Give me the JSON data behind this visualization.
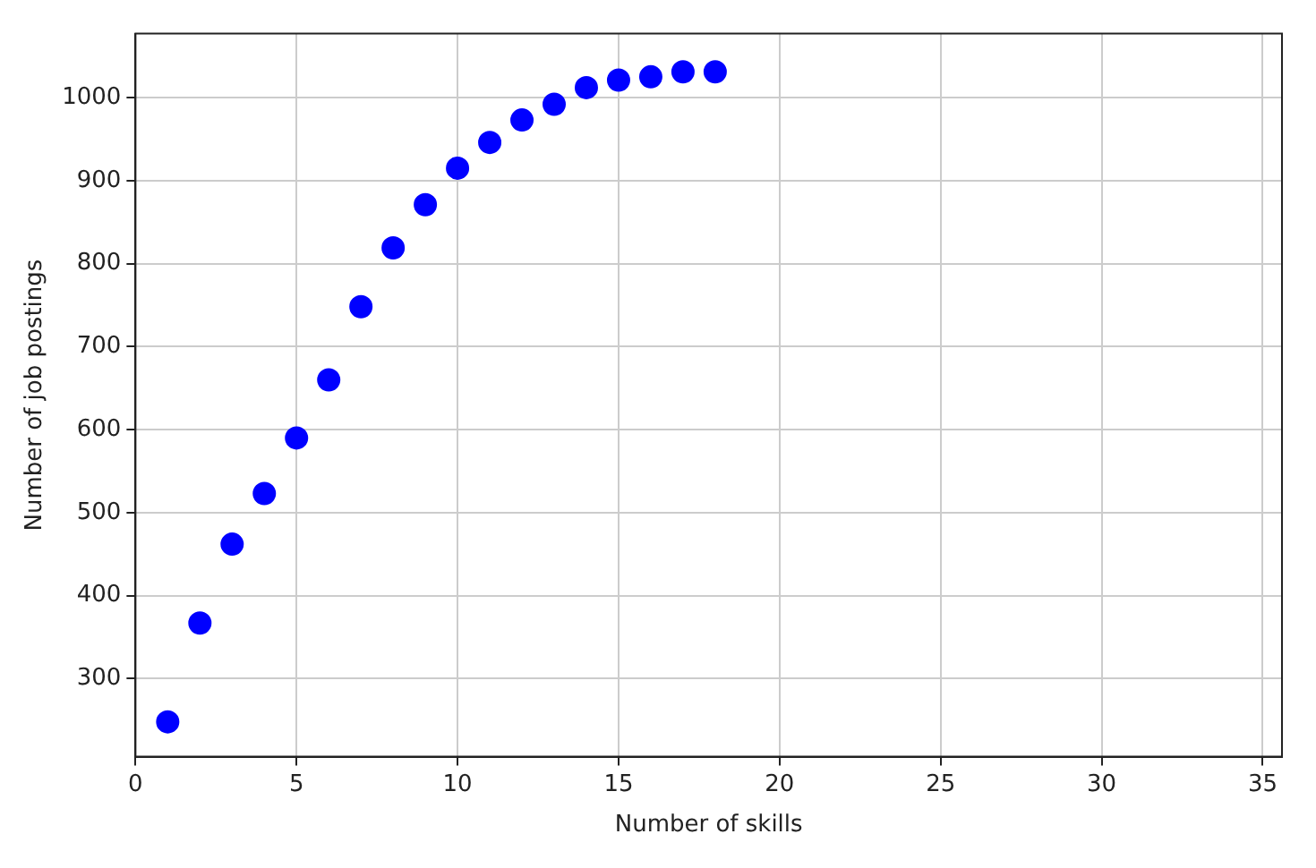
{
  "chart_data": {
    "type": "scatter",
    "xlabel": "Number of skills",
    "ylabel": "Number of job postings",
    "x": [
      1,
      2,
      3,
      4,
      5,
      6,
      7,
      8,
      9,
      10,
      11,
      12,
      13,
      14,
      15,
      16,
      17,
      18
    ],
    "values": [
      248,
      367,
      462,
      523,
      590,
      660,
      748,
      819,
      871,
      915,
      946,
      973,
      992,
      1012,
      1021,
      1025,
      1031,
      1031
    ],
    "color": "#0000ff",
    "marker": "circle",
    "xlim": [
      0,
      35.6
    ],
    "xticks": [
      0,
      5,
      10,
      15,
      20,
      25,
      30,
      35
    ],
    "ylim": [
      206,
      1077
    ],
    "yticks": [
      300,
      400,
      500,
      600,
      700,
      800,
      900,
      1000
    ],
    "grid": true
  }
}
